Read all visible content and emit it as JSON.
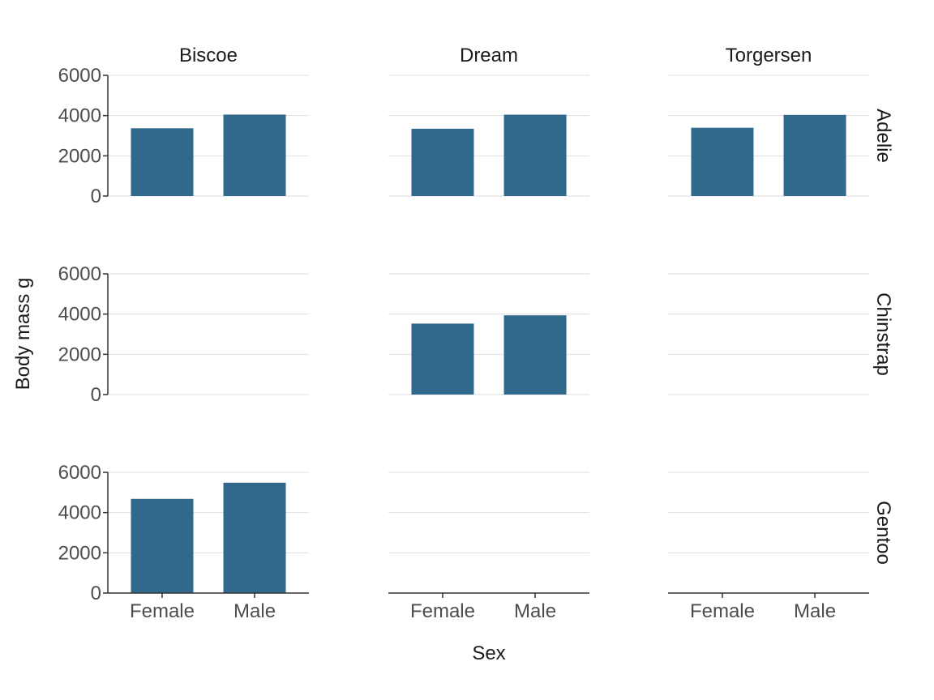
{
  "chart_data": {
    "type": "bar",
    "facet_cols": [
      "Biscoe",
      "Dream",
      "Torgersen"
    ],
    "facet_rows": [
      "Adelie",
      "Chinstrap",
      "Gentoo"
    ],
    "categories": [
      "Female",
      "Male"
    ],
    "xlabel": "Sex",
    "ylabel": "Body mass g",
    "ylim": [
      0,
      6000
    ],
    "yticks": [
      0,
      2000,
      4000,
      6000
    ],
    "bar_color": "#30698c",
    "panels": [
      {
        "island": "Biscoe",
        "species": "Adelie",
        "values": [
          3370,
          4050
        ]
      },
      {
        "island": "Dream",
        "species": "Adelie",
        "values": [
          3345,
          4045
        ]
      },
      {
        "island": "Torgersen",
        "species": "Adelie",
        "values": [
          3395,
          4035
        ]
      },
      {
        "island": "Biscoe",
        "species": "Chinstrap",
        "values": null
      },
      {
        "island": "Dream",
        "species": "Chinstrap",
        "values": [
          3527,
          3939
        ]
      },
      {
        "island": "Torgersen",
        "species": "Chinstrap",
        "values": null
      },
      {
        "island": "Biscoe",
        "species": "Gentoo",
        "values": [
          4680,
          5485
        ]
      },
      {
        "island": "Dream",
        "species": "Gentoo",
        "values": null
      },
      {
        "island": "Torgersen",
        "species": "Gentoo",
        "values": null
      }
    ]
  }
}
